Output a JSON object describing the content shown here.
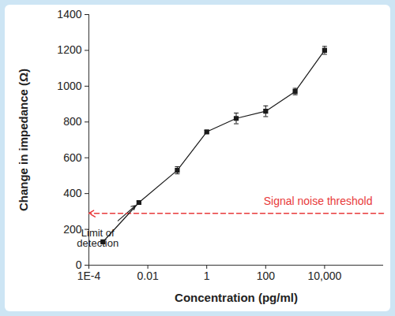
{
  "chart_data": {
    "type": "line",
    "x_label": "Concentration (pg/ml)",
    "y_label": "Change in impedance (Ω)",
    "log": "x",
    "x": [
      0.0003,
      0.005,
      0.1,
      1,
      10,
      100,
      1000,
      10000
    ],
    "values": [
      130,
      350,
      530,
      745,
      820,
      860,
      970,
      1200
    ],
    "errors": [
      5,
      8,
      20,
      8,
      30,
      30,
      18,
      22
    ],
    "color": "#1a1a1a",
    "marker": "square",
    "xlim": [
      0.0001,
      1000000
    ],
    "ylim": [
      0,
      1400
    ],
    "xticks": [
      {
        "value": 0.0001,
        "label": "1E-4"
      },
      0.01,
      1,
      100,
      {
        "value": 10000,
        "label": "10,000"
      }
    ],
    "yticks": [
      0,
      200,
      400,
      600,
      800,
      1000,
      1200,
      1400
    ],
    "annotations": [
      {
        "text": "Limit of\ndetection",
        "x": 0.0002,
        "y": 150,
        "point": [
          0.005,
          350
        ]
      },
      {
        "text": "Signal noise threshold",
        "y": 290,
        "color": "#e8393a",
        "line_style": "dashed"
      }
    ]
  }
}
